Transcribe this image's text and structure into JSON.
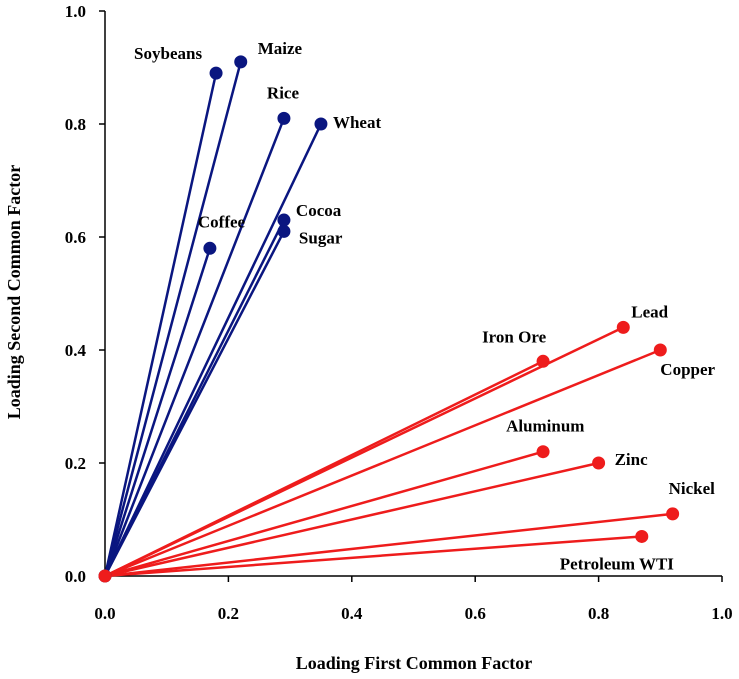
{
  "chart_data": {
    "type": "scatter",
    "xlabel": "Loading First Common Factor",
    "ylabel": "Loading Second Common Factor",
    "xlim": [
      0.0,
      1.0
    ],
    "ylim": [
      0.0,
      1.0
    ],
    "xticks": [
      "0.0",
      "0.2",
      "0.4",
      "0.6",
      "0.8",
      "1.0"
    ],
    "yticks": [
      "0.0",
      "0.2",
      "0.4",
      "0.6",
      "0.8",
      "1.0"
    ],
    "grid": false,
    "origin": [
      0.0,
      0.0
    ],
    "series": [
      {
        "color": "#0a1680",
        "points": [
          {
            "label": "Soybeans",
            "x": 0.18,
            "y": 0.89
          },
          {
            "label": "Maize",
            "x": 0.22,
            "y": 0.91
          },
          {
            "label": "Rice",
            "x": 0.29,
            "y": 0.81
          },
          {
            "label": "Wheat",
            "x": 0.35,
            "y": 0.8
          },
          {
            "label": "Coffee",
            "x": 0.17,
            "y": 0.58
          },
          {
            "label": "Cocoa",
            "x": 0.29,
            "y": 0.63
          },
          {
            "label": "Sugar",
            "x": 0.29,
            "y": 0.61
          }
        ]
      },
      {
        "color": "#ee1c1c",
        "points": [
          {
            "label": "Iron Ore",
            "x": 0.71,
            "y": 0.38
          },
          {
            "label": "Lead",
            "x": 0.84,
            "y": 0.44
          },
          {
            "label": "Copper",
            "x": 0.9,
            "y": 0.4
          },
          {
            "label": "Aluminum",
            "x": 0.71,
            "y": 0.22
          },
          {
            "label": "Zinc",
            "x": 0.8,
            "y": 0.2
          },
          {
            "label": "Nickel",
            "x": 0.92,
            "y": 0.11
          },
          {
            "label": "Petroleum WTI",
            "x": 0.87,
            "y": 0.07
          }
        ]
      }
    ]
  }
}
